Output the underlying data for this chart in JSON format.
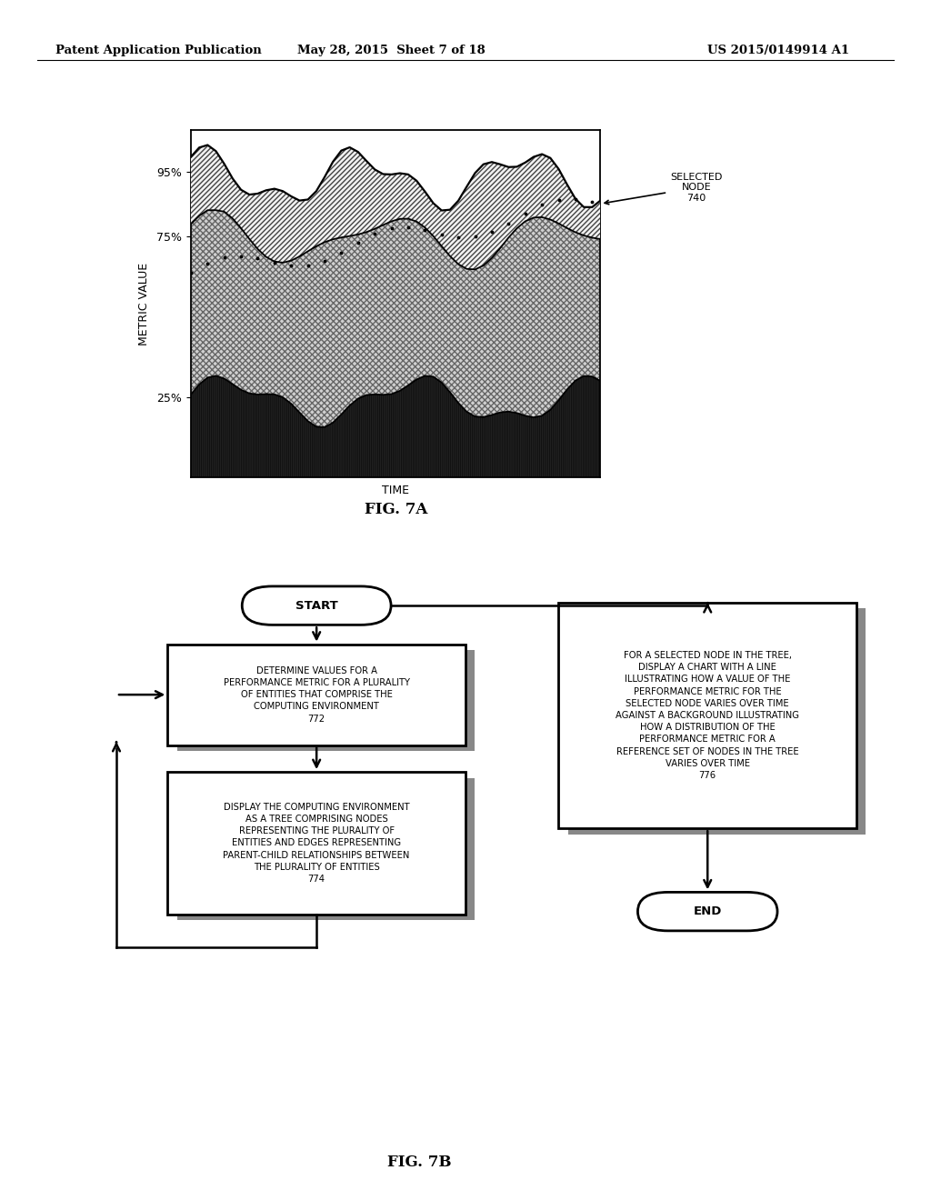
{
  "header_left": "Patent Application Publication",
  "header_mid": "May 28, 2015  Sheet 7 of 18",
  "header_right": "US 2015/0149914 A1",
  "fig7a_label": "FIG. 7A",
  "fig7b_label": "FIG. 7B",
  "chart_ylabel": "METRIC VALUE",
  "chart_xlabel": "TIME",
  "selected_node_label": "SELECTED\nNODE\n740",
  "start_label": "START",
  "end_label": "END",
  "box1_text": "DETERMINE VALUES FOR A\nPERFORMANCE METRIC FOR A PLURALITY\nOF ENTITIES THAT COMPRISE THE\nCOMPUTING ENVIRONMENT\n772",
  "box2_text": "DISPLAY THE COMPUTING ENVIRONMENT\nAS A TREE COMPRISING NODES\nREPRESENTING THE PLURALITY OF\nENTITIES AND EDGES REPRESENTING\nPARENT-CHILD RELATIONSHIPS BETWEEN\nTHE PLURALITY OF ENTITIES\n774",
  "box3_text": "FOR A SELECTED NODE IN THE TREE,\nDISPLAY A CHART WITH A LINE\nILLUSTRATING HOW A VALUE OF THE\nPERFORMANCE METRIC FOR THE\nSELECTED NODE VARIES OVER TIME\nAGAINST A BACKGROUND ILLUSTRATING\nHOW A DISTRIBUTION OF THE\nPERFORMANCE METRIC FOR A\nREFERENCE SET OF NODES IN THE TREE\nVARIES OVER TIME\n776",
  "background_color": "#ffffff"
}
